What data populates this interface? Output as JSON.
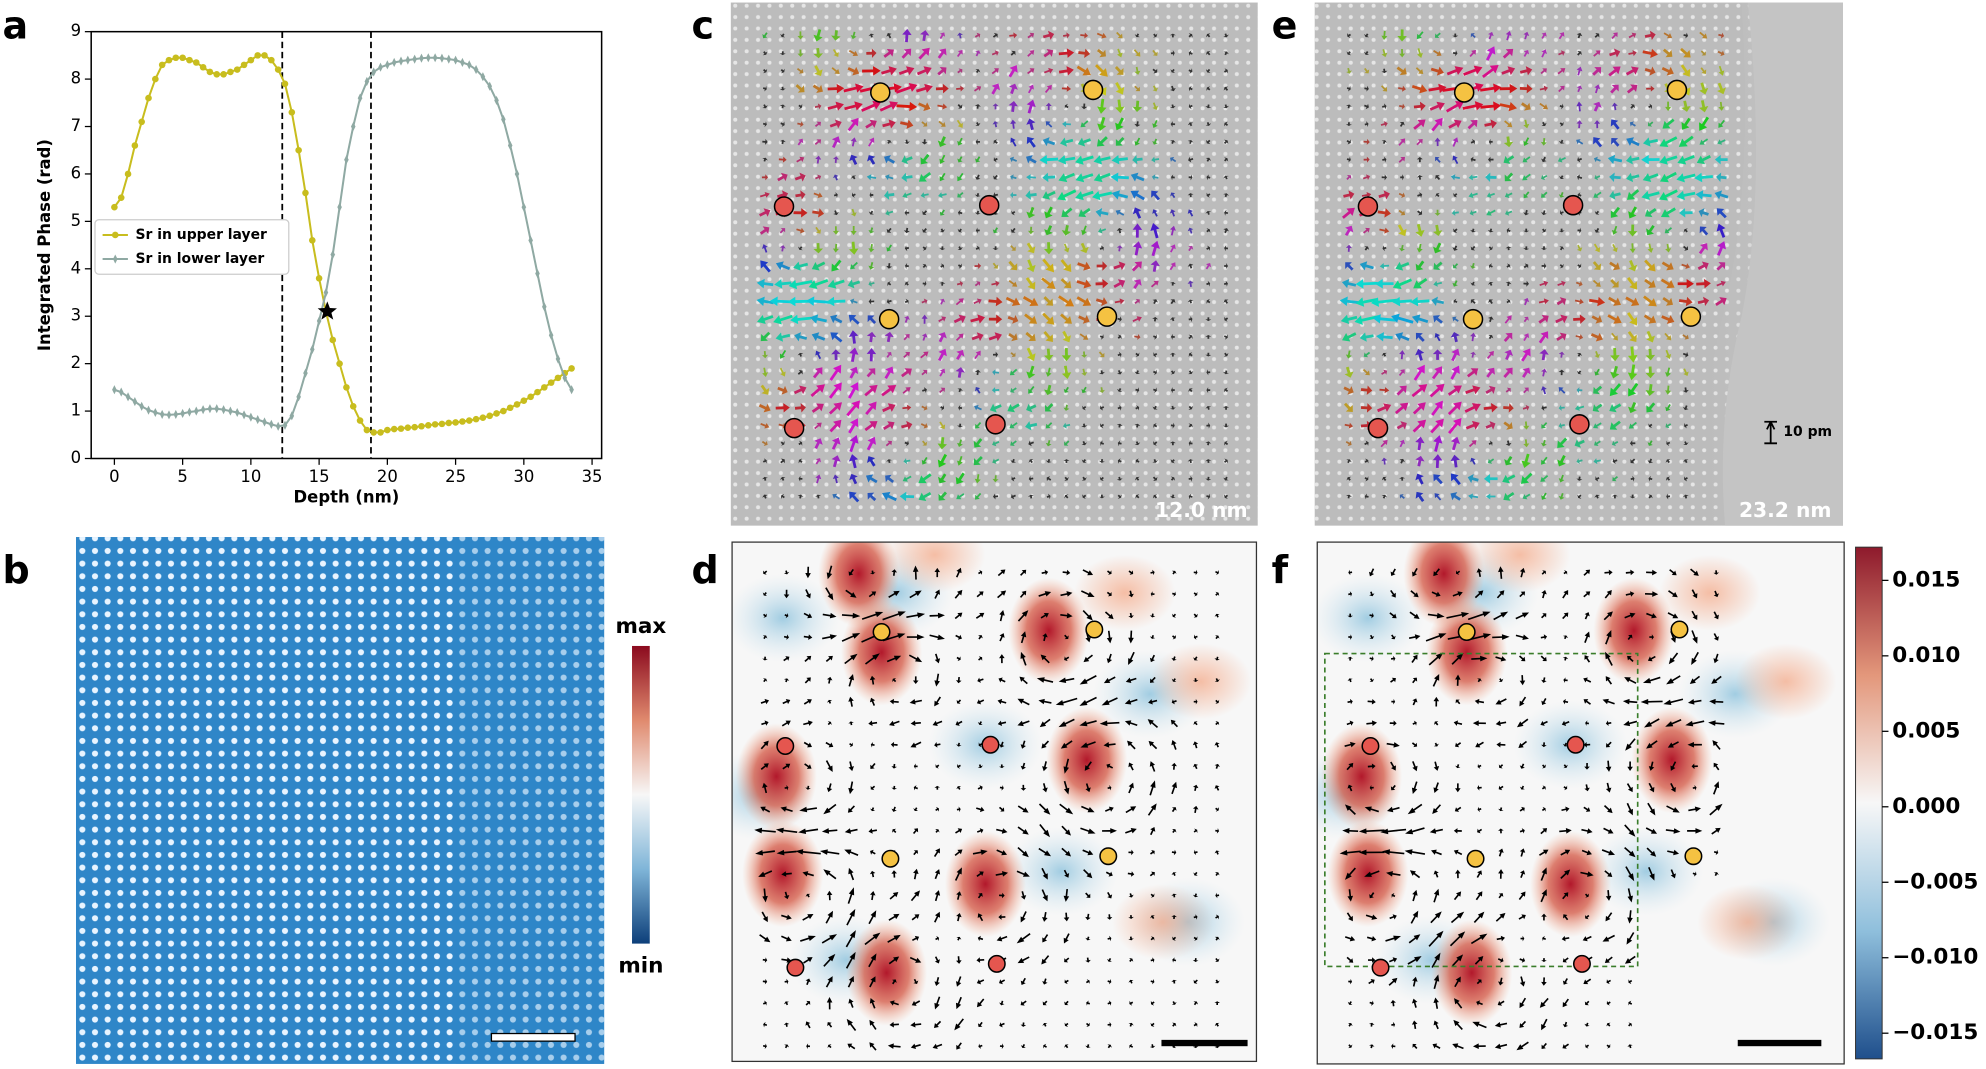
{
  "panel_labels": [
    "a",
    "b",
    "c",
    "d",
    "e",
    "f"
  ],
  "chart_data": {
    "type": "line",
    "x_label": "Depth (nm)",
    "y_label": "Integrated Phase (rad)",
    "x": [
      0,
      0.5,
      1,
      1.5,
      2,
      2.5,
      3,
      3.5,
      4,
      4.5,
      5,
      5.5,
      6,
      6.5,
      7,
      7.5,
      8,
      8.5,
      9,
      9.5,
      10,
      10.5,
      11,
      11.5,
      12,
      12.5,
      13,
      13.5,
      14,
      14.5,
      15,
      15.5,
      16,
      16.5,
      17,
      17.5,
      18,
      18.5,
      19,
      19.5,
      20,
      20.5,
      21,
      21.5,
      22,
      22.5,
      23,
      23.5,
      24,
      24.5,
      25,
      25.5,
      26,
      26.5,
      27,
      27.5,
      28,
      28.5,
      29,
      29.5,
      30,
      30.5,
      31,
      31.5,
      32,
      32.5,
      33,
      33.5
    ],
    "series": [
      {
        "name": "Sr in upper layer",
        "color": "#c8bd1e",
        "marker": "circle",
        "values": [
          5.3,
          5.5,
          6.0,
          6.6,
          7.1,
          7.6,
          8.0,
          8.3,
          8.4,
          8.45,
          8.45,
          8.4,
          8.35,
          8.25,
          8.15,
          8.1,
          8.1,
          8.15,
          8.2,
          8.3,
          8.4,
          8.5,
          8.5,
          8.4,
          8.2,
          7.9,
          7.3,
          6.5,
          5.6,
          4.6,
          3.8,
          3.1,
          2.5,
          2.0,
          1.5,
          1.1,
          0.8,
          0.6,
          0.55,
          0.55,
          0.6,
          0.62,
          0.63,
          0.65,
          0.66,
          0.68,
          0.7,
          0.72,
          0.73,
          0.75,
          0.76,
          0.78,
          0.8,
          0.83,
          0.86,
          0.9,
          0.95,
          1.0,
          1.07,
          1.14,
          1.22,
          1.3,
          1.4,
          1.5,
          1.6,
          1.7,
          1.8,
          1.9
        ]
      },
      {
        "name": "Sr in lower layer",
        "color": "#8fa9a3",
        "marker": "diamond",
        "values": [
          1.45,
          1.4,
          1.3,
          1.2,
          1.1,
          1.02,
          0.97,
          0.93,
          0.92,
          0.93,
          0.95,
          0.98,
          1.0,
          1.03,
          1.05,
          1.05,
          1.03,
          1.0,
          0.97,
          0.92,
          0.87,
          0.82,
          0.77,
          0.72,
          0.68,
          0.7,
          0.9,
          1.3,
          1.8,
          2.3,
          2.9,
          3.5,
          4.3,
          5.3,
          6.3,
          7.0,
          7.6,
          7.95,
          8.15,
          8.25,
          8.3,
          8.35,
          8.38,
          8.4,
          8.42,
          8.44,
          8.45,
          8.45,
          8.44,
          8.42,
          8.4,
          8.35,
          8.3,
          8.2,
          8.05,
          7.85,
          7.55,
          7.15,
          6.6,
          6.0,
          5.3,
          4.6,
          3.9,
          3.2,
          2.6,
          2.1,
          1.7,
          1.45
        ]
      }
    ],
    "vlines": [
      12.3,
      18.8
    ],
    "star": {
      "x": 15.6,
      "y": 3.1
    },
    "xlim": [
      -1.7,
      35.7
    ],
    "ylim": [
      0,
      9
    ],
    "xticks": [
      0,
      5,
      10,
      15,
      20,
      25,
      30,
      35
    ],
    "yticks": [
      0,
      1,
      2,
      3,
      4,
      5,
      6,
      7,
      8,
      9
    ],
    "legend": "center left"
  },
  "colorbar_b": {
    "max": "max",
    "min": "min"
  },
  "image_labels": {
    "c": "12.0 nm",
    "e": "23.2 nm"
  },
  "scale_label": "10 pm",
  "colorbar_f": {
    "clim": [
      -0.0167,
      0.0172
    ],
    "ticks": [
      {
        "value": 0.015,
        "label": "0.015"
      },
      {
        "value": 0.01,
        "label": "0.010"
      },
      {
        "value": 0.005,
        "label": "0.005"
      },
      {
        "value": 0,
        "label": "0.000"
      },
      {
        "value": -0.005,
        "label": "−0.005"
      },
      {
        "value": -0.01,
        "label": "−0.010"
      },
      {
        "value": -0.015,
        "label": "−0.015"
      }
    ]
  }
}
